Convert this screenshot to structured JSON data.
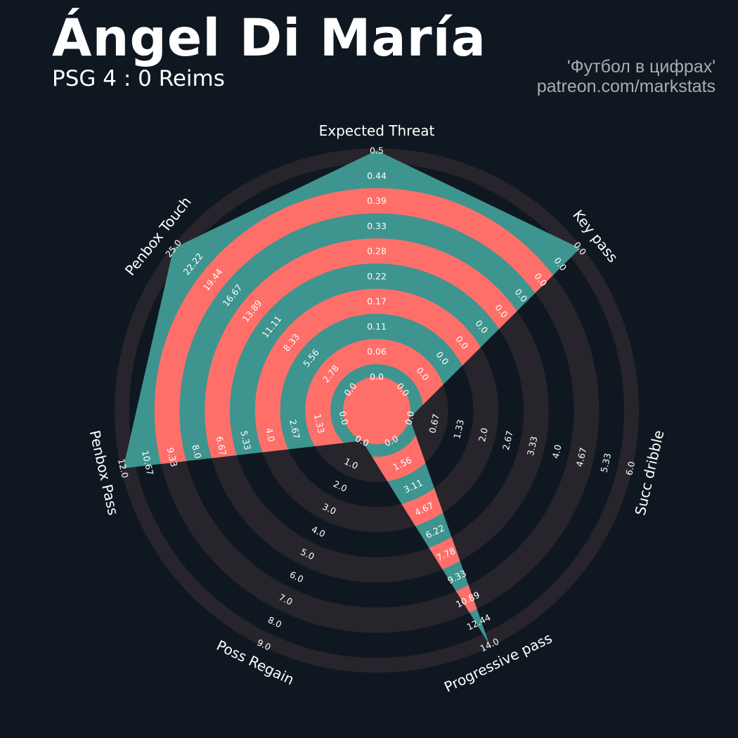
{
  "header": {
    "title": "Ángel Di María",
    "subtitle": "PSG 4 : 0 Reims",
    "credit_line1": "'Футбол в цифрах'",
    "credit_line2": "patreon.com/markstats"
  },
  "colors": {
    "background": "#0f1820",
    "ring_band": "#28242b",
    "polygon": "#3e948f",
    "polygon_band": "#ff6f69",
    "text": "#ffffff",
    "credit": "#a9acb0"
  },
  "chart_data": {
    "type": "radar",
    "title": "Ángel Di María",
    "subtitle": "PSG 4 : 0 Reims",
    "params": [
      {
        "label": "Expected Threat",
        "value": 0.5,
        "range": [
          0,
          0.5
        ],
        "ticks": [
          "0.0",
          "0.06",
          "0.11",
          "0.17",
          "0.22",
          "0.28",
          "0.33",
          "0.39",
          "0.44",
          "0.5"
        ]
      },
      {
        "label": "Key pass",
        "value": 0,
        "range": [
          0,
          0
        ],
        "ticks": [
          "0.0",
          "0.0",
          "0.0",
          "0.0",
          "0.0",
          "0.0",
          "0.0",
          "0.0",
          "0.0",
          "0.0"
        ]
      },
      {
        "label": "Succ dribble",
        "value": 0,
        "range": [
          0,
          6
        ],
        "ticks": [
          "0.0",
          "0.67",
          "1.33",
          "2.0",
          "2.67",
          "3.33",
          "4.0",
          "4.67",
          "5.33",
          "6.0"
        ]
      },
      {
        "label": "Progressive pass",
        "value": 14,
        "range": [
          0,
          14
        ],
        "ticks": [
          "0.0",
          "1.56",
          "3.11",
          "4.67",
          "6.22",
          "7.78",
          "9.33",
          "10.89",
          "12.44",
          "14.0"
        ]
      },
      {
        "label": "Poss Regain",
        "value": 0,
        "range": [
          0,
          9
        ],
        "ticks": [
          "0.0",
          "1.0",
          "2.0",
          "3.0",
          "4.0",
          "5.0",
          "6.0",
          "7.0",
          "8.0",
          "9.0"
        ]
      },
      {
        "label": "Penbox Pass",
        "value": 12,
        "range": [
          0,
          12
        ],
        "ticks": [
          "0.0",
          "1.33",
          "2.67",
          "4.0",
          "5.33",
          "6.67",
          "8.0",
          "9.33",
          "10.67",
          "12.0"
        ]
      },
      {
        "label": "Penbox Touch",
        "value": 25,
        "range": [
          0,
          25
        ],
        "ticks": [
          "0.0",
          "2.78",
          "5.56",
          "8.33",
          "11.11",
          "13.89",
          "16.67",
          "19.44",
          "22.22",
          "25.0"
        ]
      }
    ]
  }
}
